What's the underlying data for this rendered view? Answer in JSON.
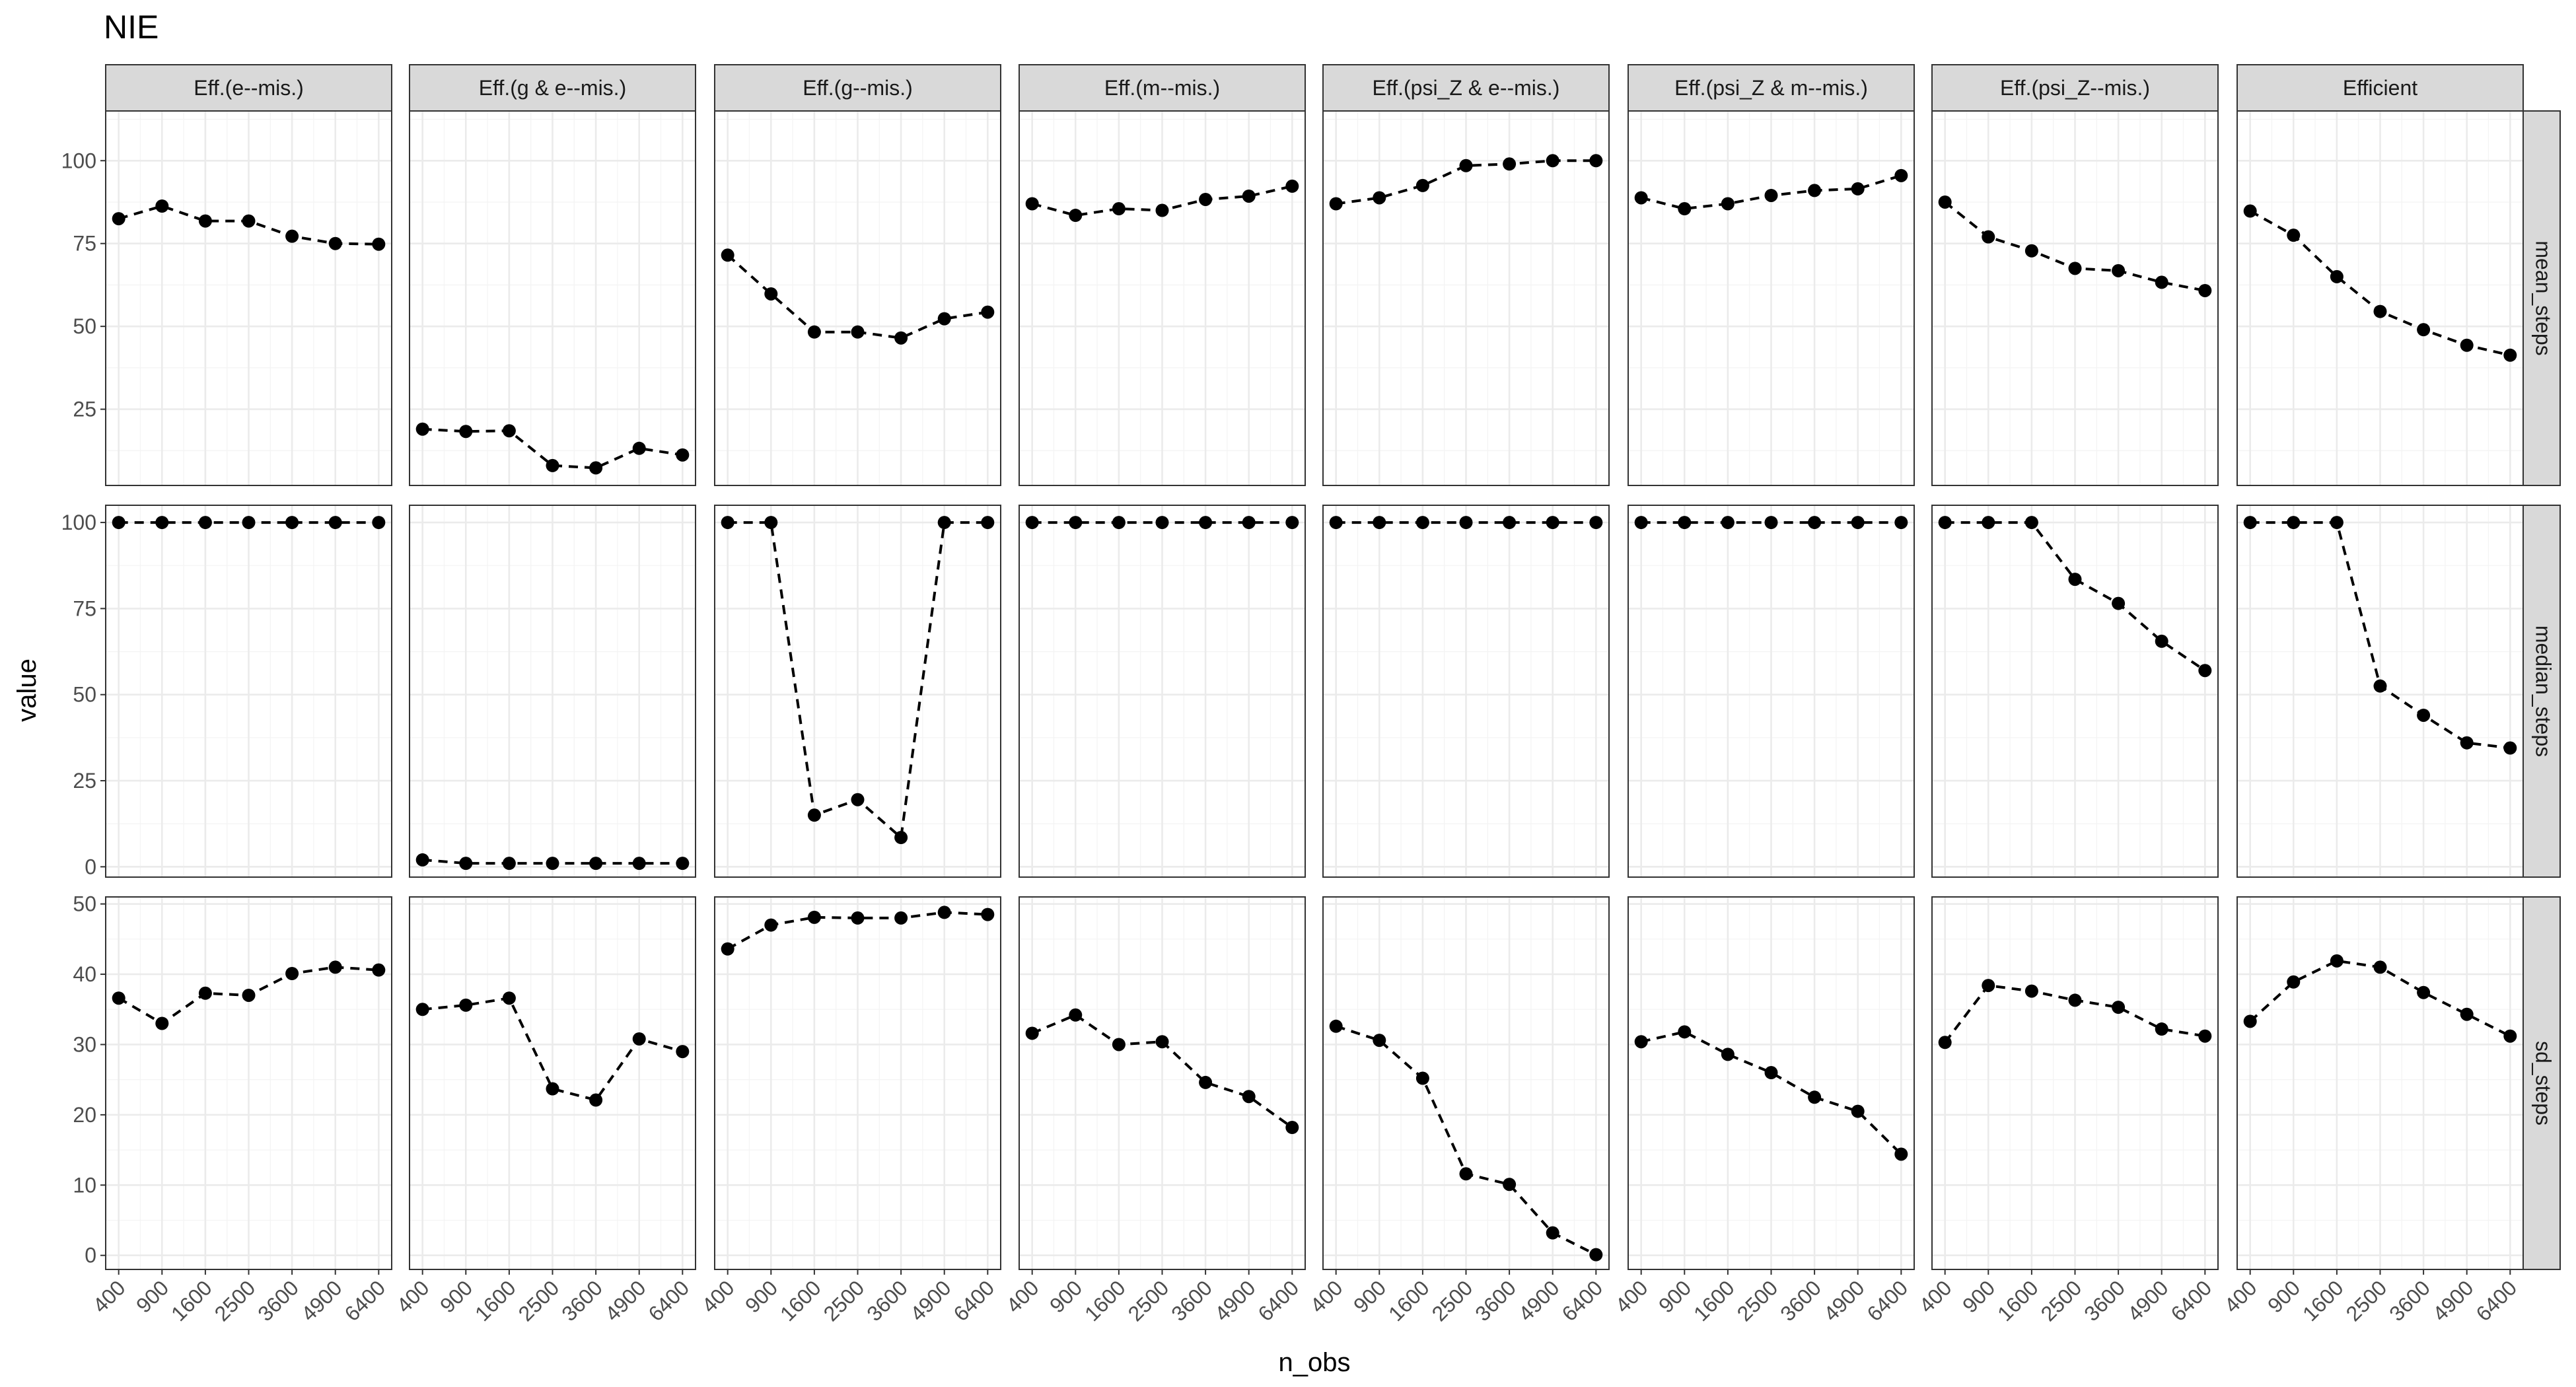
{
  "chart_data": {
    "type": "line",
    "title": "NIE",
    "xlabel": "n_obs",
    "ylabel": "value",
    "x": [
      400,
      900,
      1600,
      2500,
      3600,
      4900,
      6400
    ],
    "x_tick_labels": [
      "400",
      "900",
      "1600",
      "2500",
      "3600",
      "4900",
      "6400"
    ],
    "x_scale": "sqrt",
    "grid": true,
    "columns": [
      "Eff.(e--mis.)",
      "Eff.(g & e--mis.)",
      "Eff.(g--mis.)",
      "Eff.(m--mis.)",
      "Eff.(psi_Z & e--mis.)",
      "Eff.(psi_Z & m--mis.)",
      "Eff.(psi_Z--mis.)",
      "Efficient"
    ],
    "rows": [
      {
        "name": "mean_steps",
        "ylim": [
          2,
          115
        ],
        "yticks": [
          25,
          50,
          75,
          100
        ],
        "values": [
          [
            82.5,
            86.3,
            81.8,
            81.8,
            77.2,
            75.0,
            74.8
          ],
          [
            19.0,
            18.3,
            18.5,
            8.0,
            7.3,
            13.2,
            11.2
          ],
          [
            71.5,
            59.8,
            48.3,
            48.3,
            46.5,
            52.3,
            54.3
          ],
          [
            87.0,
            83.5,
            85.5,
            85.0,
            88.3,
            89.3,
            92.3
          ],
          [
            87.0,
            88.8,
            92.5,
            98.5,
            99.0,
            100.0,
            100.0
          ],
          [
            88.8,
            85.5,
            87.0,
            89.5,
            91.0,
            91.5,
            95.5
          ],
          [
            87.5,
            77.0,
            72.8,
            67.5,
            66.8,
            63.3,
            60.8
          ],
          [
            84.8,
            77.5,
            65.0,
            54.5,
            49.0,
            44.3,
            41.3
          ]
        ]
      },
      {
        "name": "median_steps",
        "ylim": [
          -3,
          105
        ],
        "yticks": [
          0,
          25,
          50,
          75,
          100
        ],
        "values": [
          [
            100,
            100,
            100,
            100,
            100,
            100,
            100
          ],
          [
            2,
            1,
            1,
            1,
            1,
            1,
            1
          ],
          [
            100,
            100,
            15,
            19.5,
            8.5,
            100,
            100
          ],
          [
            100,
            100,
            100,
            100,
            100,
            100,
            100
          ],
          [
            100,
            100,
            100,
            100,
            100,
            100,
            100
          ],
          [
            100,
            100,
            100,
            100,
            100,
            100,
            100
          ],
          [
            100,
            100,
            100,
            83.5,
            76.5,
            65.5,
            57.0
          ],
          [
            100,
            100,
            100,
            52.5,
            44.0,
            36.0,
            34.5
          ]
        ]
      },
      {
        "name": "sd_steps",
        "ylim": [
          -2,
          51
        ],
        "yticks": [
          0,
          10,
          20,
          30,
          40,
          50
        ],
        "values": [
          [
            36.6,
            33.0,
            37.3,
            37.0,
            40.1,
            41.0,
            40.6
          ],
          [
            35.0,
            35.6,
            36.6,
            23.7,
            22.1,
            30.8,
            29.0
          ],
          [
            43.6,
            47.0,
            48.1,
            48.0,
            48.0,
            48.8,
            48.5
          ],
          [
            31.6,
            34.2,
            30.0,
            30.4,
            24.6,
            22.6,
            18.2
          ],
          [
            32.6,
            30.6,
            25.2,
            11.6,
            10.1,
            3.2,
            0.1
          ],
          [
            30.4,
            31.8,
            28.6,
            26.0,
            22.5,
            20.5,
            14.4
          ],
          [
            30.3,
            38.4,
            37.6,
            36.3,
            35.3,
            32.2,
            31.2
          ],
          [
            33.3,
            38.9,
            41.9,
            41.0,
            37.4,
            34.3,
            31.2
          ]
        ]
      }
    ]
  }
}
